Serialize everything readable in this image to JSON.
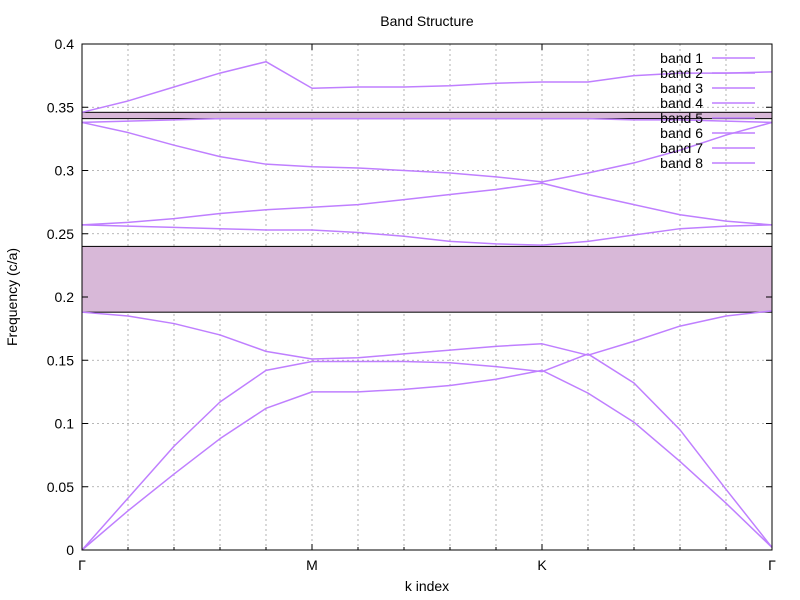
{
  "chart_data": {
    "type": "line",
    "title": "Band Structure",
    "xlabel": "k index",
    "ylabel": "Frequency (c/a)",
    "ylim": [
      0,
      0.4
    ],
    "xlim": [
      0,
      15
    ],
    "yticks": [
      0,
      0.05,
      0.1,
      0.15,
      0.2,
      0.25,
      0.3,
      0.35,
      0.4
    ],
    "ytick_labels": [
      "0",
      "0.05",
      "0.1",
      "0.15",
      "0.2",
      "0.25",
      "0.3",
      "0.35",
      "0.4"
    ],
    "xticks": [
      0,
      5,
      10,
      15
    ],
    "xtick_labels": [
      "Γ",
      "M",
      "K",
      "Γ"
    ],
    "minor_x_gridlines": [
      1,
      2,
      3,
      4,
      6,
      7,
      8,
      9,
      11,
      12,
      13,
      14
    ],
    "grid": true,
    "legend_position": "top-right",
    "line_color": "#bf7fff",
    "gap_fill_color": "#d8b8d8",
    "x": [
      0,
      1,
      2,
      3,
      4,
      5,
      6,
      7,
      8,
      9,
      10,
      11,
      12,
      13,
      14,
      15
    ],
    "series": [
      {
        "name": "band 1",
        "values": [
          0,
          0.031,
          0.06,
          0.088,
          0.112,
          0.125,
          0.125,
          0.127,
          0.13,
          0.135,
          0.142,
          0.124,
          0.101,
          0.07,
          0.037,
          0.002
        ]
      },
      {
        "name": "band 2",
        "values": [
          0,
          0.041,
          0.082,
          0.117,
          0.142,
          0.149,
          0.149,
          0.149,
          0.148,
          0.145,
          0.141,
          0.155,
          0.132,
          0.095,
          0.048,
          0.002
        ]
      },
      {
        "name": "band 3",
        "values": [
          0.188,
          0.185,
          0.179,
          0.17,
          0.157,
          0.151,
          0.152,
          0.155,
          0.158,
          0.161,
          0.163,
          0.154,
          0.165,
          0.177,
          0.185,
          0.189
        ]
      },
      {
        "name": "band 4",
        "values": [
          0.257,
          0.256,
          0.255,
          0.254,
          0.253,
          0.253,
          0.251,
          0.248,
          0.244,
          0.242,
          0.241,
          0.244,
          0.249,
          0.254,
          0.256,
          0.257
        ]
      },
      {
        "name": "band 5",
        "values": [
          0.257,
          0.259,
          0.262,
          0.266,
          0.269,
          0.271,
          0.273,
          0.277,
          0.281,
          0.285,
          0.29,
          0.281,
          0.273,
          0.265,
          0.26,
          0.257
        ]
      },
      {
        "name": "band 6",
        "values": [
          0.338,
          0.33,
          0.32,
          0.311,
          0.305,
          0.303,
          0.302,
          0.3,
          0.298,
          0.295,
          0.291,
          0.298,
          0.306,
          0.316,
          0.328,
          0.338
        ]
      },
      {
        "name": "band 7",
        "values": [
          0.338,
          0.339,
          0.34,
          0.341,
          0.341,
          0.341,
          0.341,
          0.341,
          0.341,
          0.341,
          0.341,
          0.341,
          0.34,
          0.34,
          0.339,
          0.338
        ]
      },
      {
        "name": "band 8",
        "values": [
          0.346,
          0.355,
          0.366,
          0.377,
          0.386,
          0.365,
          0.366,
          0.366,
          0.367,
          0.369,
          0.37,
          0.37,
          0.375,
          0.377,
          0.377,
          0.378
        ]
      }
    ],
    "band_gaps": [
      {
        "from": 0.188,
        "to": 0.24
      },
      {
        "from": 0.341,
        "to": 0.346
      }
    ]
  }
}
